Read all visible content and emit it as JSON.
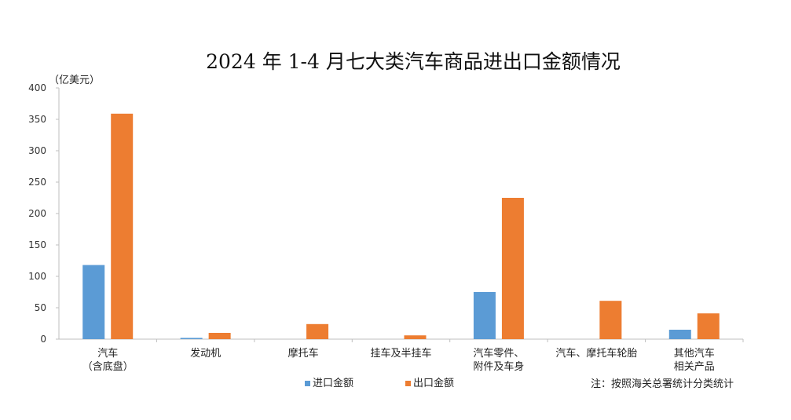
{
  "chart_data": {
    "type": "bar",
    "title": "2024 年 1-4 月七大类汽车商品进出口金额情况",
    "unit_label": "（亿美元）",
    "ylim": [
      0,
      400
    ],
    "yticks": [
      "0",
      "50",
      "100",
      "150",
      "200",
      "250",
      "300",
      "350",
      "400"
    ],
    "categories": [
      [
        "汽车",
        "（含底盘）"
      ],
      [
        "发动机"
      ],
      [
        "摩托车"
      ],
      [
        "挂车及半挂车"
      ],
      [
        "汽车零件、",
        "附件及车身"
      ],
      [
        "汽车、摩托车轮胎"
      ],
      [
        "其他汽车",
        "相关产品"
      ]
    ],
    "series": [
      {
        "name": "进口金额",
        "color": "#5b9bd5",
        "values": [
          118,
          2,
          0,
          0,
          75,
          0,
          15
        ]
      },
      {
        "name": "出口金额",
        "color": "#ed7d31",
        "values": [
          359,
          10,
          24,
          6,
          225,
          61,
          41
        ]
      }
    ],
    "legend_position": "bottom",
    "grid": false,
    "note": "注：按照海关总署统计分类统计"
  }
}
